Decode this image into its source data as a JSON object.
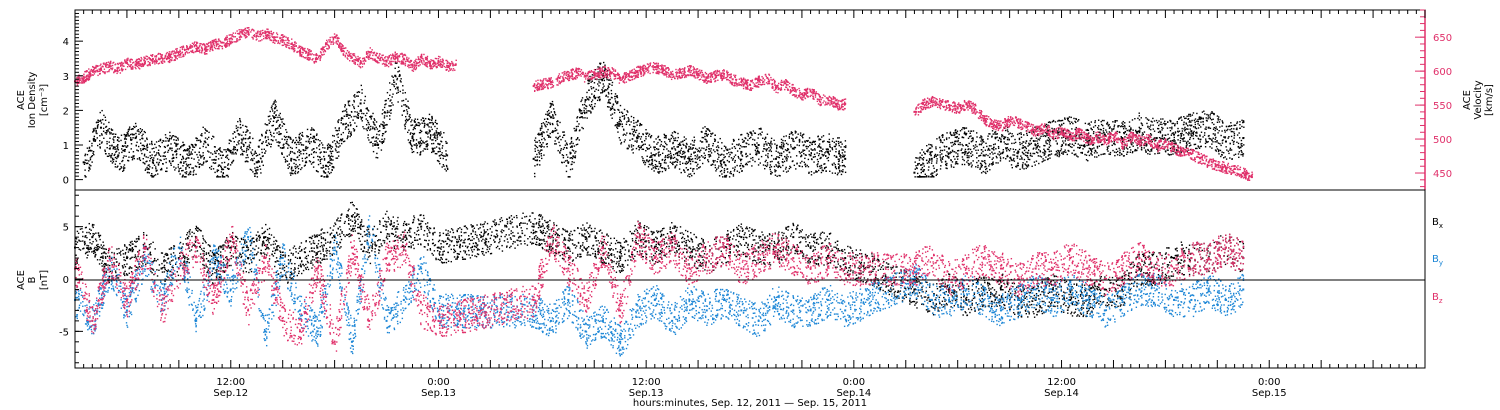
{
  "chart_data": [
    {
      "type": "scatter",
      "panel": "top",
      "ylabel": [
        "ACE",
        "Ion Density",
        "[cm⁻³]"
      ],
      "ylabel_right": [
        "ACE",
        "Velocity",
        "[km/s]"
      ],
      "ylim": [
        -0.3,
        4.9
      ],
      "yticks": [
        "0",
        "1",
        "2",
        "3",
        "4"
      ],
      "ylim_right": [
        425,
        690
      ],
      "yticks_right": [
        "450",
        "500",
        "550",
        "600",
        "650"
      ],
      "colors": {
        "density": "#000000",
        "velocity": "#e0306a"
      },
      "series": [
        {
          "name": "",
          "axis": "left",
          "color": "#000000",
          "x": [
            2,
            6,
            10,
            14,
            18,
            22,
            26,
            30,
            34,
            38,
            42,
            46,
            50,
            54,
            58,
            62,
            66,
            70,
            74,
            78,
            82,
            86
          ],
          "y": [
            0.5,
            1.5,
            0.7,
            1.2,
            0.5,
            0.9,
            0.4,
            1.1,
            0.3,
            1.3,
            0.5,
            1.8,
            0.6,
            1.1,
            0.4,
            1.6,
            2.2,
            1.0,
            3.0,
            1.2,
            1.4,
            0.7
          ]
        },
        {
          "name": "",
          "axis": "right",
          "color": "#e0306a",
          "x": [
            0,
            2,
            4,
            6,
            8,
            10,
            12,
            14,
            16,
            18,
            20,
            22,
            24,
            26,
            28,
            30,
            32,
            34,
            36,
            38,
            40,
            42,
            44,
            46,
            48,
            50,
            52,
            54,
            56,
            58,
            60,
            62,
            64,
            66,
            68,
            70,
            72,
            74,
            76,
            78,
            80,
            82,
            84,
            86,
            88
          ],
          "y": [
            585,
            592,
            600,
            604,
            608,
            605,
            612,
            610,
            616,
            618,
            620,
            622,
            628,
            633,
            638,
            632,
            640,
            642,
            648,
            655,
            658,
            652,
            656,
            650,
            646,
            640,
            630,
            625,
            618,
            640,
            650,
            630,
            620,
            612,
            628,
            620,
            614,
            622,
            618,
            608,
            620,
            612,
            615,
            608,
            610
          ]
        },
        {
          "name": "",
          "axis": "left",
          "color": "#000000",
          "x": [
            106,
            110,
            114,
            118,
            122,
            126,
            130,
            134,
            138,
            142,
            146,
            150,
            154,
            158,
            162,
            166,
            170,
            174,
            178
          ],
          "y": [
            0.6,
            1.8,
            0.5,
            2.3,
            3.0,
            1.6,
            1.2,
            0.7,
            0.9,
            0.6,
            1.1,
            0.5,
            0.8,
            1.0,
            0.6,
            0.9,
            0.7,
            0.8,
            0.6
          ]
        },
        {
          "name": "",
          "axis": "right",
          "color": "#e0306a",
          "x": [
            106,
            108,
            110,
            112,
            114,
            116,
            118,
            120,
            122,
            124,
            126,
            128,
            130,
            132,
            134,
            136,
            138,
            140,
            142,
            144,
            146,
            148,
            150,
            152,
            154,
            156,
            158,
            160,
            162,
            164,
            166,
            168,
            170,
            172,
            174,
            176,
            178
          ],
          "y": [
            578,
            582,
            584,
            590,
            595,
            598,
            592,
            596,
            600,
            598,
            590,
            594,
            600,
            604,
            606,
            602,
            595,
            598,
            602,
            596,
            590,
            594,
            596,
            588,
            584,
            580,
            586,
            590,
            576,
            582,
            572,
            566,
            570,
            558,
            560,
            552,
            552
          ]
        },
        {
          "name": "",
          "axis": "left",
          "color": "#000000",
          "x": [
            194,
            198,
            202,
            206,
            210,
            214,
            218,
            222,
            226,
            230,
            234,
            238,
            242,
            246,
            250,
            254,
            258,
            262,
            266,
            270
          ],
          "y": [
            0.2,
            0.6,
            0.9,
            1.0,
            0.7,
            1.1,
            0.8,
            1.0,
            1.2,
            1.3,
            1.1,
            1.3,
            1.2,
            1.4,
            1.2,
            1.3,
            1.4,
            1.5,
            1.1,
            1.2
          ]
        },
        {
          "name": "",
          "axis": "right",
          "color": "#e0306a",
          "x": [
            194,
            196,
            198,
            200,
            202,
            204,
            206,
            208,
            210,
            212,
            214,
            216,
            218,
            220,
            222,
            224,
            226,
            228,
            230,
            232,
            234,
            236,
            238,
            240,
            242,
            244,
            246,
            248,
            250,
            252,
            254,
            256,
            258,
            260,
            262,
            264,
            266,
            268,
            270,
            272
          ],
          "y": [
            540,
            552,
            556,
            552,
            550,
            546,
            552,
            544,
            530,
            522,
            520,
            528,
            524,
            518,
            512,
            518,
            508,
            512,
            504,
            510,
            500,
            504,
            500,
            506,
            494,
            504,
            498,
            500,
            490,
            496,
            486,
            482,
            478,
            472,
            466,
            462,
            458,
            456,
            450,
            444
          ]
        }
      ]
    },
    {
      "type": "scatter",
      "panel": "bottom",
      "ylabel": [
        "ACE",
        "B",
        "[nT]"
      ],
      "ylim": [
        -8.5,
        8.5
      ],
      "yticks": [
        "-5",
        "0",
        "5"
      ],
      "zero_line": true,
      "legend_position": "right",
      "legend": [
        {
          "base": "B",
          "sub": "x",
          "color": "#000000"
        },
        {
          "base": "B",
          "sub": "y",
          "color": "#1c86d6"
        },
        {
          "base": "B",
          "sub": "z",
          "color": "#e0306a"
        }
      ],
      "x_tick_labels": [
        {
          "x": 36,
          "line1": "12:00",
          "line2": "Sep.12"
        },
        {
          "x": 84,
          "line1": "0:00",
          "line2": "Sep.13"
        },
        {
          "x": 132,
          "line1": "12:00",
          "line2": "Sep.13"
        },
        {
          "x": 180,
          "line1": "0:00",
          "line2": "Sep.14"
        },
        {
          "x": 228,
          "line1": "12:00",
          "line2": "Sep.14"
        },
        {
          "x": 276,
          "line1": "0:00",
          "line2": "Sep.15"
        }
      ],
      "xlim": [
        0,
        312
      ],
      "xlabel": "hours:minutes, Sep. 12, 2011 — Sep. 15, 2011",
      "colors": {
        "bx": "#000000",
        "by": "#1c86d6",
        "bz": "#e0306a"
      },
      "series": [
        {
          "name": "Bx",
          "color": "#000000",
          "x": [
            0,
            4,
            8,
            12,
            16,
            20,
            24,
            28,
            32,
            36,
            40,
            44,
            48,
            52,
            56,
            60,
            64,
            68,
            72,
            76,
            80,
            84,
            106,
            110,
            114,
            118,
            122,
            126,
            130,
            134,
            138,
            142,
            146,
            150,
            154,
            158,
            162,
            166,
            170,
            174,
            178,
            194,
            198,
            202,
            206,
            210,
            214,
            218,
            222,
            226,
            230,
            234,
            238,
            242,
            246,
            250,
            254,
            258,
            262,
            266,
            270
          ],
          "y": [
            3,
            4,
            1,
            2,
            3,
            1,
            2,
            4,
            1,
            3,
            2,
            4,
            1,
            2,
            3,
            4,
            6,
            3,
            5,
            4,
            5,
            3,
            5,
            4,
            3,
            4,
            3,
            2,
            4,
            3,
            4,
            3,
            2,
            3,
            4,
            3,
            3,
            4,
            3,
            3,
            2,
            -1,
            -2,
            -1,
            -2,
            -1,
            -1,
            -2,
            -2,
            -1,
            -2,
            -2,
            -1,
            -1,
            1,
            1,
            2,
            2,
            2,
            3,
            2
          ]
        },
        {
          "name": "By",
          "color": "#1c86d6",
          "x": [
            0,
            4,
            8,
            12,
            16,
            20,
            24,
            28,
            32,
            36,
            40,
            44,
            48,
            52,
            56,
            60,
            64,
            68,
            72,
            76,
            80,
            84,
            106,
            110,
            114,
            118,
            122,
            126,
            130,
            134,
            138,
            142,
            146,
            150,
            154,
            158,
            162,
            166,
            170,
            174,
            178,
            194,
            198,
            202,
            206,
            210,
            214,
            218,
            222,
            226,
            230,
            234,
            238,
            242,
            246,
            250,
            254,
            258,
            262,
            266,
            270
          ],
          "y": [
            -2,
            -4,
            1,
            -3,
            2,
            -2,
            3,
            -4,
            2,
            -1,
            4,
            -5,
            2,
            -3,
            -5,
            3,
            -6,
            5,
            -4,
            -2,
            1,
            -3,
            -3,
            -4,
            -2,
            -5,
            -4,
            -6,
            -3,
            -2,
            -4,
            -2,
            -3,
            -2,
            -3,
            -4,
            -2,
            -3,
            -3,
            -2,
            -3,
            0,
            -2,
            -2,
            -1,
            -2,
            -3,
            -2,
            -1,
            -2,
            -1,
            -2,
            -3,
            -2,
            -1,
            -1,
            -2,
            -2,
            -1,
            -2,
            -1
          ]
        },
        {
          "name": "Bz",
          "color": "#e0306a",
          "x": [
            0,
            4,
            8,
            12,
            16,
            20,
            24,
            28,
            32,
            36,
            40,
            44,
            48,
            52,
            56,
            60,
            64,
            68,
            72,
            76,
            80,
            84,
            106,
            110,
            114,
            118,
            122,
            126,
            130,
            134,
            138,
            142,
            146,
            150,
            154,
            158,
            162,
            166,
            170,
            174,
            178,
            194,
            198,
            202,
            206,
            210,
            214,
            218,
            222,
            226,
            230,
            234,
            238,
            242,
            246,
            250,
            254,
            258,
            262,
            266,
            270
          ],
          "y": [
            1,
            -4,
            2,
            -2,
            3,
            -3,
            1,
            3,
            -2,
            4,
            -3,
            2,
            -4,
            -5,
            1,
            -6,
            3,
            -4,
            2,
            3,
            -3,
            -4,
            -2,
            4,
            1,
            -2,
            3,
            -3,
            4,
            2,
            3,
            1,
            2,
            3,
            1,
            2,
            3,
            2,
            1,
            2,
            1,
            1,
            2,
            0,
            1,
            2,
            1,
            0,
            1,
            1,
            2,
            1,
            0,
            1,
            2,
            1,
            1,
            2,
            2,
            3,
            2
          ]
        }
      ]
    }
  ]
}
